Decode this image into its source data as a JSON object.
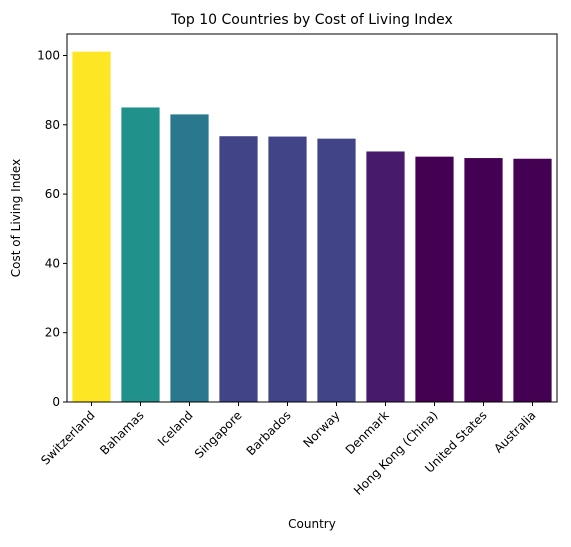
{
  "chart_data": {
    "type": "bar",
    "title": "Top 10 Countries by Cost of Living Index",
    "xlabel": "Country",
    "ylabel": "Cost of Living Index",
    "categories": [
      "Switzerland",
      "Bahamas",
      "Iceland",
      "Singapore",
      "Barbados",
      "Norway",
      "Denmark",
      "Hong Kong (China)",
      "United States",
      "Australia"
    ],
    "values": [
      101.1,
      85.0,
      83.0,
      76.7,
      76.6,
      76.0,
      72.3,
      70.8,
      70.4,
      70.2
    ],
    "colors": [
      "#fde725",
      "#21918c",
      "#2a788e",
      "#414487",
      "#414487",
      "#414487",
      "#481a6c",
      "#440154",
      "#440154",
      "#440154"
    ],
    "ylim": [
      0,
      106.2
    ],
    "yticks": [
      0,
      20,
      40,
      60,
      80,
      100
    ],
    "grid": false,
    "legend": "none"
  }
}
